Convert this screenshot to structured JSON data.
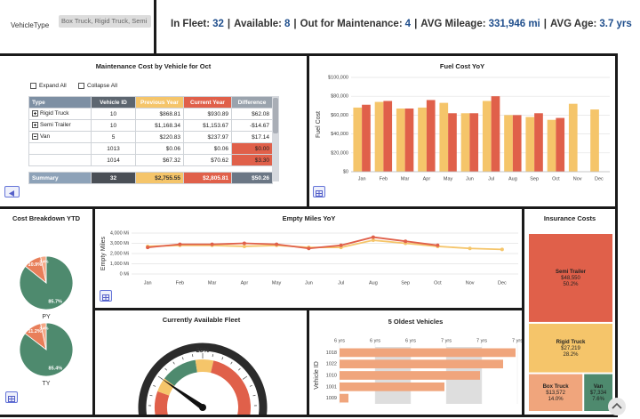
{
  "filter": {
    "label": "VehicleType",
    "value": "Box Truck, Rigid Truck, Semi"
  },
  "kpis": {
    "separator": "|",
    "items": [
      {
        "label": "In Fleet:",
        "value": "32"
      },
      {
        "label": "Available:",
        "value": "8"
      },
      {
        "label": "Out for Maintenance:",
        "value": "4"
      },
      {
        "label": "AVG Mileage:",
        "value": "331,946 mi"
      },
      {
        "label": "AVG Age:",
        "value": "3.7 yrs"
      }
    ]
  },
  "maintenance": {
    "title": "Maintenance Cost by Vehicle for Oct",
    "buttons": [
      "Expand All",
      "Collapse All"
    ],
    "columns": [
      "Type",
      "Vehicle ID",
      "Previous Year",
      "Current Year",
      "Difference"
    ],
    "rows": [
      {
        "toggle": "expand",
        "cells": [
          "Rigid Truck",
          "10",
          "$868.81",
          "$930.89",
          "$62.08"
        ]
      },
      {
        "toggle": "expand",
        "cells": [
          "Semi Trailer",
          "10",
          "$1,168.34",
          "$1,153.67",
          "-$14.67"
        ]
      },
      {
        "toggle": "collapse",
        "cells": [
          "Van",
          "5",
          "$220.83",
          "$237.97",
          "$17.14"
        ]
      },
      {
        "alert": true,
        "cells": [
          null,
          "1013",
          "$0.06",
          "$0.06",
          "$0.00"
        ]
      },
      {
        "alert": true,
        "cells": [
          null,
          "1014",
          "$67.32",
          "$70.62",
          "$3.30"
        ]
      }
    ],
    "summary": [
      "Summary",
      "32",
      "$2,755.55",
      "$2,805.81",
      "$50.26"
    ]
  },
  "chart_data": [
    {
      "type": "bar",
      "title": "Fuel Cost YoY",
      "y_label": "Fuel Cost",
      "categories": [
        "Jan",
        "Feb",
        "Mar",
        "Apr",
        "May",
        "Jun",
        "Jul",
        "Aug",
        "Sep",
        "Oct",
        "Nov",
        "Dec"
      ],
      "series": [
        {
          "color": "#f5c56a",
          "values": [
            68000,
            74000,
            67000,
            68000,
            73000,
            62000,
            75000,
            60000,
            58000,
            55000,
            72000,
            66000
          ]
        },
        {
          "color": "#e0604a",
          "values": [
            71000,
            75000,
            67000,
            76000,
            62000,
            62000,
            80000,
            60000,
            62000,
            57000,
            null,
            null
          ]
        }
      ],
      "ylim": [
        0,
        100000
      ],
      "yticks": [
        {
          "value": 0,
          "label": "$0"
        },
        {
          "value": 20000,
          "label": "$20,000"
        },
        {
          "value": 40000,
          "label": "$40,000"
        },
        {
          "value": 60000,
          "label": "$60,000"
        },
        {
          "value": 80000,
          "label": "$80,000"
        },
        {
          "value": 100000,
          "label": "$100,000"
        }
      ],
      "grid": true
    },
    {
      "type": "pie",
      "title": "Cost Breakdown YTD",
      "colors": [
        "#4e8a6e",
        "#e87f5a",
        "#f4a886"
      ],
      "series": [
        {
          "name": "PY",
          "values": [
            85.7,
            10.9,
            3.4
          ],
          "value_labels": [
            "85.7%",
            "10.9%",
            "3.4%"
          ]
        },
        {
          "name": "TY",
          "values": [
            85.4,
            11.2,
            3.4
          ],
          "value_labels": [
            "85.4%",
            "11.2%",
            "3.4%"
          ]
        }
      ]
    },
    {
      "type": "line",
      "title": "Empty Miles YoY",
      "y_label": "Empty Miles",
      "categories": [
        "Jan",
        "Feb",
        "Mar",
        "Apr",
        "May",
        "Jun",
        "Jul",
        "Aug",
        "Sep",
        "Oct",
        "Nov",
        "Dec"
      ],
      "series": [
        {
          "color": "#f5c56a",
          "values": [
            2700,
            2800,
            2800,
            2700,
            2800,
            2600,
            2600,
            3300,
            3000,
            2700,
            2500,
            2400
          ]
        },
        {
          "color": "#e0604a",
          "values": [
            2600,
            2900,
            2900,
            3000,
            2900,
            2500,
            2800,
            3600,
            3200,
            2800,
            null,
            null
          ]
        }
      ],
      "ylim": [
        0,
        4000
      ],
      "yticks": [
        {
          "value": 0,
          "label": "0 Mi"
        },
        {
          "value": 1000,
          "label": "1,000 Mi"
        },
        {
          "value": 2000,
          "label": "2,000 Mi"
        },
        {
          "value": 3000,
          "label": "3,000 Mi"
        },
        {
          "value": 4000,
          "label": "4,000 Mi"
        }
      ],
      "grid": true
    },
    {
      "type": "gauge",
      "title": "Currently Available Fleet",
      "range": [
        0,
        100
      ],
      "values": [
        25
      ],
      "value_labels": [
        "25%"
      ]
    },
    {
      "type": "hbar",
      "title": "5 Oldest Vehicles",
      "y_label": "Vehicle ID",
      "categories": [
        "1018",
        "1022",
        "1010",
        "1001",
        "1009"
      ],
      "values": [
        6.99,
        6.92,
        6.79,
        6.59,
        6.05
      ],
      "color": "#f0a57c",
      "xlim": [
        6,
        7
      ],
      "xticks": [
        {
          "value": 6,
          "label": "6 yrs"
        },
        {
          "value": 6.2,
          "label": "6 yrs"
        },
        {
          "value": 6.4,
          "label": "6 yrs"
        },
        {
          "value": 6.6,
          "label": "7 yrs"
        },
        {
          "value": 6.8,
          "label": "7 yrs"
        },
        {
          "value": 7,
          "label": "7 yrs"
        }
      ]
    },
    {
      "type": "treemap",
      "title": "Insurance Costs",
      "categories": [
        "Semi Trailer",
        "Rigid Truck",
        "Box Truck",
        "Van"
      ],
      "values": [
        48550,
        27219,
        13572,
        7334
      ],
      "value_labels": [
        "$48,550",
        "$27,219",
        "$13,572",
        "$7,334"
      ],
      "shares": [
        50.2,
        28.2,
        14,
        7.6
      ],
      "share_labels": [
        "50.2%",
        "28.2%",
        "14.0%",
        "7.6%"
      ],
      "colors": [
        "#e0604a",
        "#f5c56a",
        "#f0a57c",
        "#4e8a6e"
      ]
    }
  ]
}
